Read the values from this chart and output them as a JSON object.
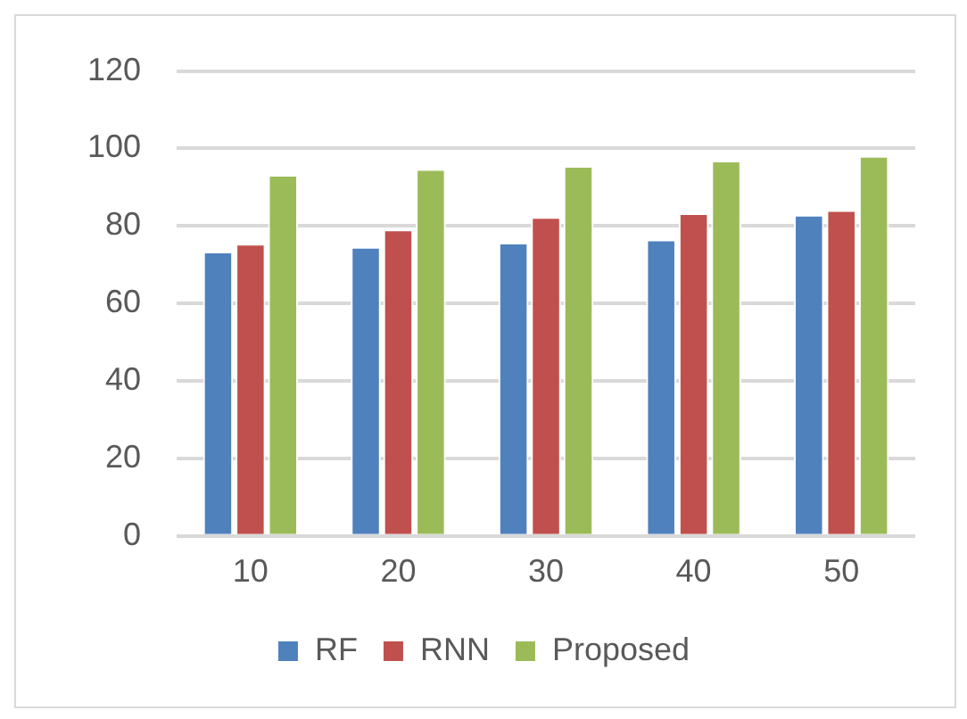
{
  "chart_data": {
    "type": "bar",
    "categories": [
      "10",
      "20",
      "30",
      "40",
      "50"
    ],
    "series": [
      {
        "name": "RF",
        "color": "#4f81bd",
        "values": [
          73.4,
          74.6,
          75.7,
          76.5,
          82.9
        ]
      },
      {
        "name": "RNN",
        "color": "#c0504d",
        "values": [
          75.4,
          79.1,
          82.3,
          83.3,
          84.1
        ]
      },
      {
        "name": "Proposed",
        "color": "#9bbb59",
        "values": [
          93.2,
          94.7,
          95.5,
          96.9,
          98.1
        ]
      }
    ],
    "ylim": [
      0,
      120
    ],
    "yticks": [
      0,
      20,
      40,
      60,
      80,
      100,
      120
    ],
    "grid": "y",
    "legend": "bottom"
  }
}
